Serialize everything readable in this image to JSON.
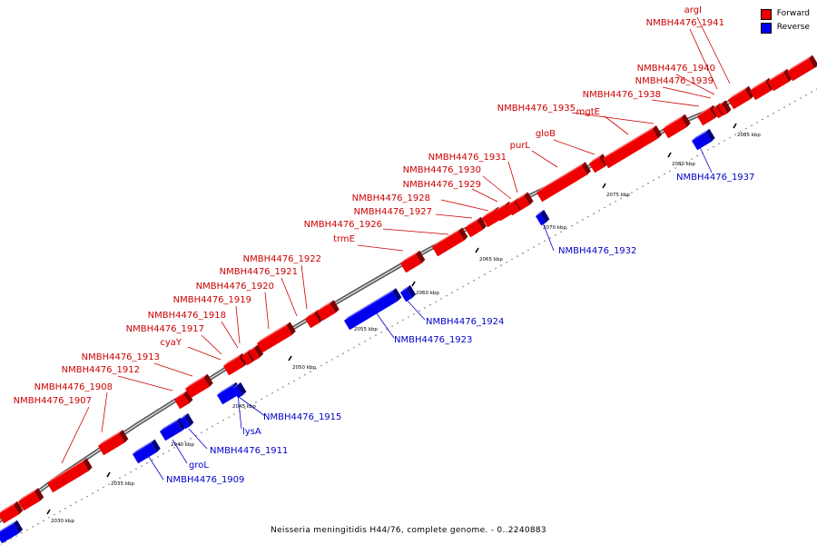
{
  "legend": {
    "forward": {
      "label": "Forward",
      "color": "#ee0000"
    },
    "reverse": {
      "label": "Reverse",
      "color": "#0000ee"
    }
  },
  "caption": "Neisseria meningitidis H44/76, complete genome. - 0..2240883",
  "scale_labels": [
    "2030 kbp",
    "2035 kbp",
    "2040 kbp",
    "2045 kbp",
    "2050 kbp",
    "2055 kbp",
    "2060 kbp",
    "2065 kbp",
    "2070 kbp",
    "2075 kbp",
    "2080 kbp",
    "2085 kbp"
  ],
  "forward_labels": [
    "argI",
    "NMBH4476_1941",
    "NMBH4476_1940",
    "NMBH4476_1939",
    "NMBH4476_1938",
    "NMBH4476_1935",
    "mgtE",
    "gloB",
    "purL",
    "NMBH4476_1931",
    "NMBH4476_1930",
    "NMBH4476_1929",
    "NMBH4476_1928",
    "NMBH4476_1927",
    "NMBH4476_1926",
    "trmE",
    "NMBH4476_1922",
    "NMBH4476_1921",
    "NMBH4476_1920",
    "NMBH4476_1919",
    "NMBH4476_1918",
    "NMBH4476_1917",
    "cyaY",
    "NMBH4476_1913",
    "NMBH4476_1912",
    "NMBH4476_1908",
    "NMBH4476_1907"
  ],
  "reverse_labels": [
    "NMBH4476_1937",
    "NMBH4476_1932",
    "NMBH4476_1924",
    "NMBH4476_1923",
    "NMBH4476_1915",
    "lysA",
    "NMBH4476_1911",
    "groL",
    "NMBH4476_1909"
  ]
}
